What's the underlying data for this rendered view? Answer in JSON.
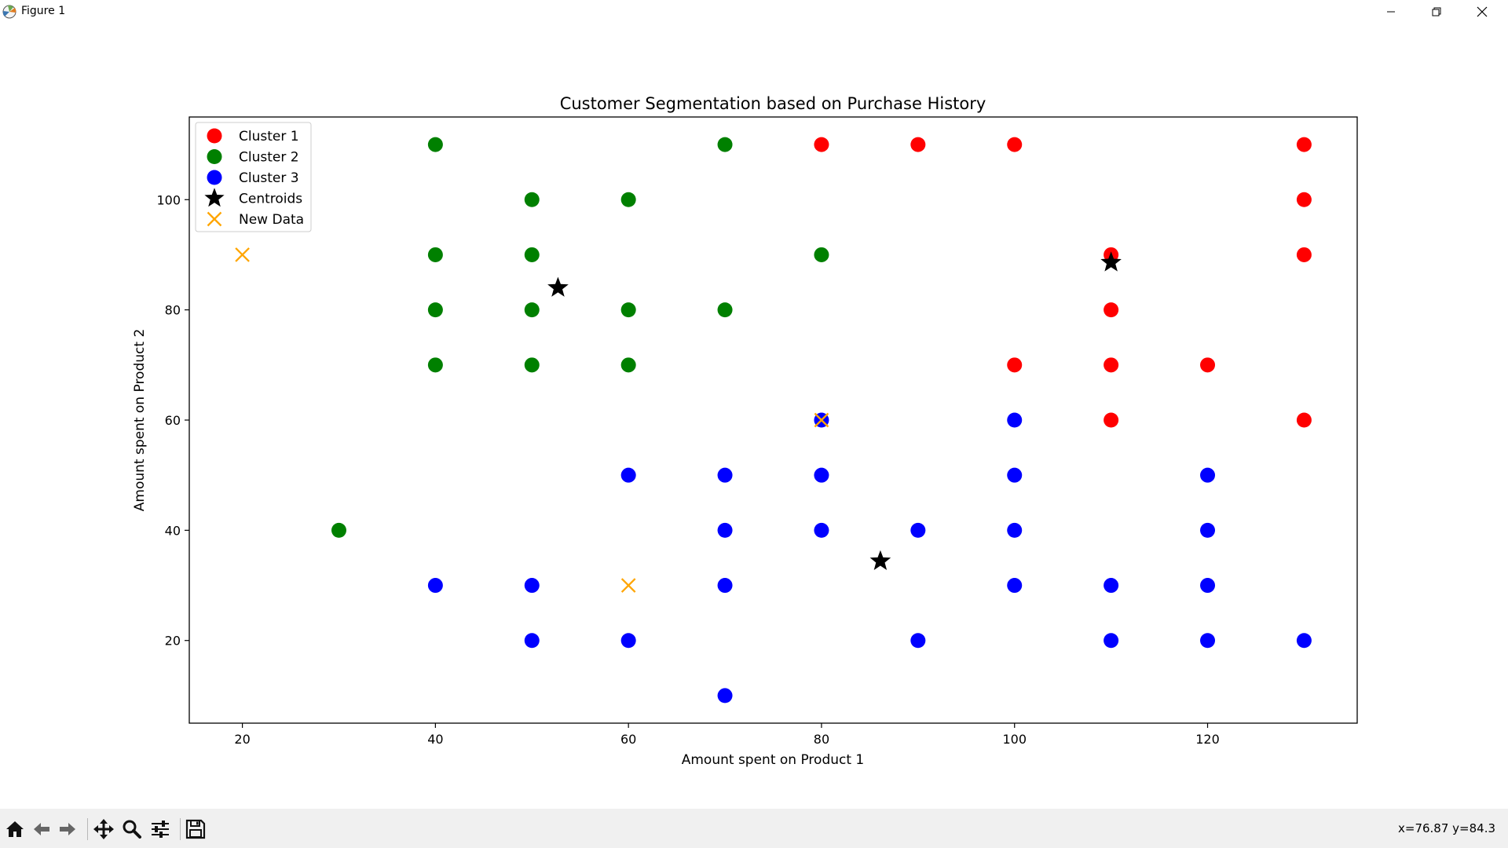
{
  "window": {
    "title": "Figure 1",
    "icons": [
      "matplotlib-icon",
      "minimize-icon",
      "restore-icon",
      "close-icon"
    ]
  },
  "toolbar": {
    "icons": [
      "home-icon",
      "back-arrow-icon",
      "forward-arrow-icon",
      "pan-icon",
      "zoom-icon",
      "configure-subplots-icon",
      "save-icon"
    ],
    "coords": "x=76.87 y=84.3"
  },
  "chart_data": {
    "type": "scatter",
    "title": "Customer Segmentation based on Purchase History",
    "xlabel": "Amount spent on Product 1",
    "ylabel": "Amount spent on Product 2",
    "xlim": [
      14.5,
      135.5
    ],
    "ylim": [
      5,
      115
    ],
    "xticks": [
      20,
      40,
      60,
      80,
      100,
      120
    ],
    "yticks": [
      20,
      40,
      60,
      80,
      100
    ],
    "grid": false,
    "legend": "upper-left",
    "series": [
      {
        "name": "Cluster 1",
        "marker": "circle",
        "color": "#ff0000",
        "points": [
          [
            80,
            110
          ],
          [
            90,
            110
          ],
          [
            100,
            110
          ],
          [
            130,
            110
          ],
          [
            130,
            100
          ],
          [
            110,
            90
          ],
          [
            130,
            90
          ],
          [
            110,
            80
          ],
          [
            100,
            70
          ],
          [
            110,
            70
          ],
          [
            120,
            70
          ],
          [
            110,
            60
          ],
          [
            130,
            60
          ]
        ]
      },
      {
        "name": "Cluster 2",
        "marker": "circle",
        "color": "#008000",
        "points": [
          [
            40,
            110
          ],
          [
            70,
            110
          ],
          [
            50,
            100
          ],
          [
            60,
            100
          ],
          [
            40,
            90
          ],
          [
            50,
            90
          ],
          [
            80,
            90
          ],
          [
            40,
            80
          ],
          [
            50,
            80
          ],
          [
            60,
            80
          ],
          [
            70,
            80
          ],
          [
            40,
            70
          ],
          [
            50,
            70
          ],
          [
            60,
            70
          ],
          [
            30,
            40
          ]
        ]
      },
      {
        "name": "Cluster 3",
        "marker": "circle",
        "color": "#0000ff",
        "points": [
          [
            80,
            60
          ],
          [
            100,
            60
          ],
          [
            60,
            50
          ],
          [
            70,
            50
          ],
          [
            80,
            50
          ],
          [
            100,
            50
          ],
          [
            120,
            50
          ],
          [
            70,
            40
          ],
          [
            80,
            40
          ],
          [
            90,
            40
          ],
          [
            100,
            40
          ],
          [
            120,
            40
          ],
          [
            40,
            30
          ],
          [
            50,
            30
          ],
          [
            70,
            30
          ],
          [
            100,
            30
          ],
          [
            110,
            30
          ],
          [
            120,
            30
          ],
          [
            50,
            20
          ],
          [
            60,
            20
          ],
          [
            90,
            20
          ],
          [
            110,
            20
          ],
          [
            120,
            20
          ],
          [
            130,
            20
          ],
          [
            70,
            10
          ]
        ]
      },
      {
        "name": "Centroids",
        "marker": "star",
        "color": "#000000",
        "points": [
          [
            52.7,
            84.0
          ],
          [
            110,
            88.6
          ],
          [
            86.1,
            34.4
          ]
        ]
      },
      {
        "name": "New Data",
        "marker": "x",
        "color": "#ffa500",
        "points": [
          [
            20,
            90
          ],
          [
            80,
            60
          ],
          [
            60,
            30
          ]
        ]
      }
    ]
  }
}
